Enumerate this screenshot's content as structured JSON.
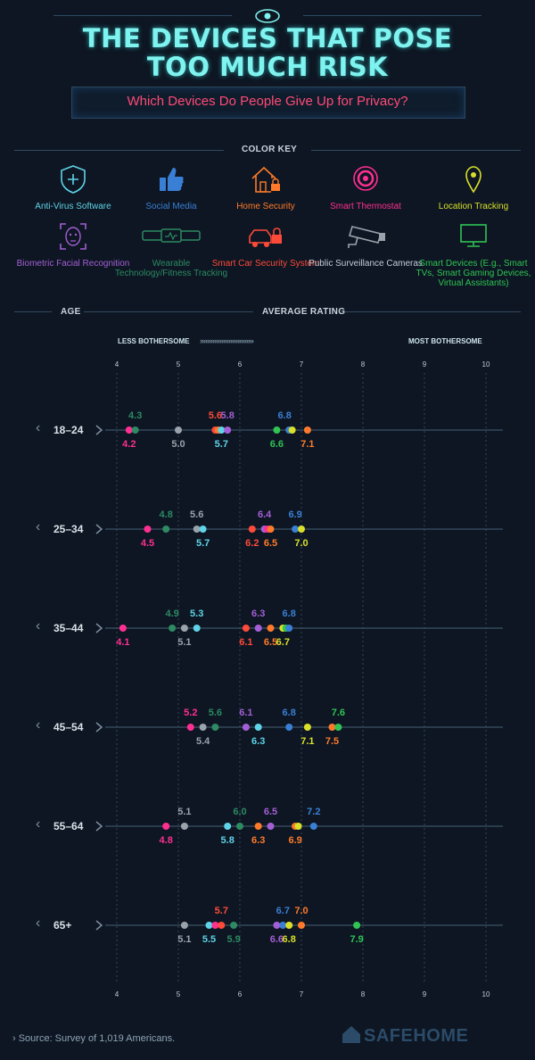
{
  "header": {
    "title_line1": "THE DEVICES THAT POSE",
    "title_line2": "TOO MUCH RISK",
    "subtitle": "Which Devices Do People Give Up for Privacy?",
    "icon": "eye-icon"
  },
  "key": {
    "heading": "COLOR KEY",
    "items": [
      {
        "label": "Anti-Virus Software",
        "color": "#5fd3e8",
        "icon": "shield-plus-icon"
      },
      {
        "label": "Social Media",
        "color": "#3a7fd6",
        "icon": "thumbs-up-icon"
      },
      {
        "label": "Home Security",
        "color": "#ff7a2a",
        "icon": "house-lock-icon"
      },
      {
        "label": "Smart Thermostat",
        "color": "#ff2f92",
        "icon": "thermostat-icon"
      },
      {
        "label": "Location Tracking",
        "color": "#d8e02a",
        "icon": "location-pin-icon"
      },
      {
        "label": "Biometric Facial Recognition",
        "color": "#a55fd6",
        "icon": "face-scan-icon"
      },
      {
        "label": "Wearable Technology/Fitness Tracking",
        "color": "#2d8a63",
        "icon": "fitness-band-icon"
      },
      {
        "label": "Smart Car Security System",
        "color": "#ff4a3a",
        "icon": "car-lock-icon"
      },
      {
        "label": "Public Surveillance Cameras",
        "color": "#9aa3ab",
        "icon": "security-camera-icon"
      },
      {
        "label": "Smart Devices (E.g., Smart TVs, Smart Gaming Devices, Virtual Assistants)",
        "color": "#2fc454",
        "icon": "monitor-icon"
      }
    ]
  },
  "chart_headers": {
    "age": "AGE",
    "rating": "AVERAGE RATING",
    "less": "LESS BOTHERSOME",
    "most": "MOST BOTHERSOME",
    "arrows": "››››››››››››››››››››››››››››››"
  },
  "chart_data": {
    "type": "scatter",
    "title": "",
    "xlabel": "AVERAGE RATING",
    "ylabel": "AGE",
    "xlim": [
      4,
      10
    ],
    "ticks": [
      4,
      5,
      6,
      7,
      8,
      9,
      10
    ],
    "rows": [
      {
        "age": "18–24",
        "points": [
          {
            "v": 4.2,
            "label": "4.2",
            "color": "#ff2f92",
            "pos": "below"
          },
          {
            "v": 4.3,
            "label": "4.3",
            "color": "#2d8a63",
            "pos": "above"
          },
          {
            "v": 5.0,
            "label": "5.0",
            "color": "#9aa3ab",
            "pos": "below"
          },
          {
            "v": 5.6,
            "label": "5.6",
            "color": "#ff4a3a",
            "pos": "above"
          },
          {
            "v": 5.65,
            "label": "",
            "color": "#ff7a2a",
            "pos": "none"
          },
          {
            "v": 5.7,
            "label": "5.7",
            "color": "#5fd3e8",
            "pos": "below"
          },
          {
            "v": 5.8,
            "label": "5.8",
            "color": "#a55fd6",
            "pos": "above"
          },
          {
            "v": 6.6,
            "label": "6.6",
            "color": "#2fc454",
            "pos": "below"
          },
          {
            "v": 6.8,
            "label": "6.8",
            "color": "#3a7fd6",
            "pos": "above",
            "lx": -5
          },
          {
            "v": 6.85,
            "label": "",
            "color": "#d8e02a",
            "pos": "none"
          },
          {
            "v": 7.1,
            "label": "7.1",
            "color": "#ff7a2a",
            "pos": "below"
          }
        ]
      },
      {
        "age": "25–34",
        "points": [
          {
            "v": 4.5,
            "label": "4.5",
            "color": "#ff2f92",
            "pos": "below"
          },
          {
            "v": 4.8,
            "label": "4.8",
            "color": "#2d8a63",
            "pos": "above"
          },
          {
            "v": 5.6,
            "label": "5.6",
            "color": "#9aa3ab",
            "pos": "above",
            "dv": 5.3
          },
          {
            "v": 5.7,
            "label": "5.7",
            "color": "#5fd3e8",
            "pos": "below",
            "dv": 5.4
          },
          {
            "v": 6.2,
            "label": "6.2",
            "color": "#ff4a3a",
            "pos": "below"
          },
          {
            "v": 6.4,
            "label": "6.4",
            "color": "#a55fd6",
            "pos": "above"
          },
          {
            "v": 6.45,
            "label": "",
            "color": "#ff2f92",
            "pos": "none"
          },
          {
            "v": 6.5,
            "label": "6.5",
            "color": "#ff7a2a",
            "pos": "below"
          },
          {
            "v": 6.9,
            "label": "6.9",
            "color": "#3a7fd6",
            "pos": "above"
          },
          {
            "v": 7.0,
            "label": "7.0",
            "color": "#d8e02a",
            "pos": "below"
          }
        ]
      },
      {
        "age": "35–44",
        "points": [
          {
            "v": 4.1,
            "label": "4.1",
            "color": "#ff2f92",
            "pos": "below"
          },
          {
            "v": 4.9,
            "label": "4.9",
            "color": "#2d8a63",
            "pos": "above"
          },
          {
            "v": 5.1,
            "label": "5.1",
            "color": "#9aa3ab",
            "pos": "below"
          },
          {
            "v": 5.3,
            "label": "5.3",
            "color": "#5fd3e8",
            "pos": "above"
          },
          {
            "v": 6.1,
            "label": "6.1",
            "color": "#ff4a3a",
            "pos": "below"
          },
          {
            "v": 6.3,
            "label": "6.3",
            "color": "#a55fd6",
            "pos": "above"
          },
          {
            "v": 6.5,
            "label": "6.5",
            "color": "#ff7a2a",
            "pos": "below"
          },
          {
            "v": 6.7,
            "label": "6.7",
            "color": "#d8e02a",
            "pos": "below"
          },
          {
            "v": 6.75,
            "label": "",
            "color": "#2fc454",
            "pos": "none"
          },
          {
            "v": 6.8,
            "label": "6.8",
            "color": "#3a7fd6",
            "pos": "above"
          }
        ]
      },
      {
        "age": "45–54",
        "points": [
          {
            "v": 5.2,
            "label": "5.2",
            "color": "#ff2f92",
            "pos": "above"
          },
          {
            "v": 5.4,
            "label": "5.4",
            "color": "#9aa3ab",
            "pos": "below"
          },
          {
            "v": 5.6,
            "label": "5.6",
            "color": "#2d8a63",
            "pos": "above"
          },
          {
            "v": 6.1,
            "label": "6.1",
            "color": "#a55fd6",
            "pos": "above"
          },
          {
            "v": 6.3,
            "label": "6.3",
            "color": "#5fd3e8",
            "pos": "below"
          },
          {
            "v": 6.8,
            "label": "6.8",
            "color": "#3a7fd6",
            "pos": "above"
          },
          {
            "v": 7.1,
            "label": "7.1",
            "color": "#d8e02a",
            "pos": "below"
          },
          {
            "v": 7.5,
            "label": "7.5",
            "color": "#ff7a2a",
            "pos": "below"
          },
          {
            "v": 7.6,
            "label": "7.6",
            "color": "#2fc454",
            "pos": "above"
          }
        ]
      },
      {
        "age": "55–64",
        "points": [
          {
            "v": 4.8,
            "label": "4.8",
            "color": "#ff2f92",
            "pos": "below"
          },
          {
            "v": 5.1,
            "label": "5.1",
            "color": "#9aa3ab",
            "pos": "above"
          },
          {
            "v": 5.8,
            "label": "5.8",
            "color": "#5fd3e8",
            "pos": "below"
          },
          {
            "v": 6.0,
            "label": "6.0",
            "color": "#2d8a63",
            "pos": "above"
          },
          {
            "v": 6.3,
            "label": "6.3",
            "color": "#ff7a2a",
            "pos": "below"
          },
          {
            "v": 6.5,
            "label": "6.5",
            "color": "#a55fd6",
            "pos": "above"
          },
          {
            "v": 6.9,
            "label": "6.9",
            "color": "#ff7a2a",
            "pos": "below"
          },
          {
            "v": 6.95,
            "label": "",
            "color": "#d8e02a",
            "pos": "none"
          },
          {
            "v": 7.2,
            "label": "7.2",
            "color": "#3a7fd6",
            "pos": "above"
          }
        ]
      },
      {
        "age": "65+",
        "points": [
          {
            "v": 5.1,
            "label": "5.1",
            "color": "#9aa3ab",
            "pos": "below"
          },
          {
            "v": 5.5,
            "label": "5.5",
            "color": "#5fd3e8",
            "pos": "below"
          },
          {
            "v": 5.6,
            "label": "",
            "color": "#ff2f92",
            "pos": "none"
          },
          {
            "v": 5.7,
            "label": "5.7",
            "color": "#ff4a3a",
            "pos": "above"
          },
          {
            "v": 5.9,
            "label": "5.9",
            "color": "#2d8a63",
            "pos": "below"
          },
          {
            "v": 6.6,
            "label": "6.6",
            "color": "#a55fd6",
            "pos": "below"
          },
          {
            "v": 6.7,
            "label": "6.7",
            "color": "#3a7fd6",
            "pos": "above"
          },
          {
            "v": 6.8,
            "label": "6.8",
            "color": "#d8e02a",
            "pos": "below"
          },
          {
            "v": 7.0,
            "label": "7.0",
            "color": "#ff7a2a",
            "pos": "above"
          },
          {
            "v": 7.9,
            "label": "7.9",
            "color": "#2fc454",
            "pos": "below"
          }
        ]
      }
    ]
  },
  "footer": {
    "source": "› Source: Survey of 1,019 Americans.",
    "brand": "SAFEHOME"
  }
}
